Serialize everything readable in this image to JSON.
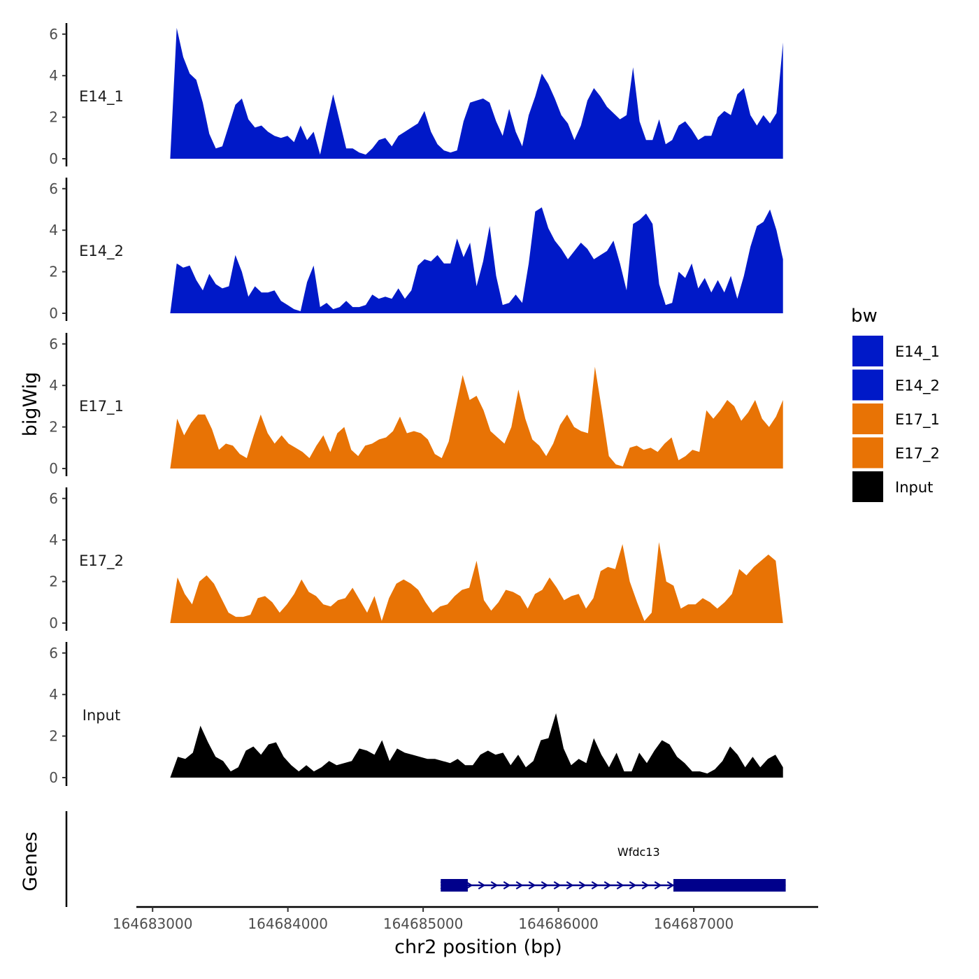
{
  "chart_data": {
    "type": "area",
    "ylabel": "bigWig",
    "xlabel": "chr2 position (bp)",
    "xlim": [
      164682880,
      164687920
    ],
    "data_x_range": [
      164683130,
      164687660
    ],
    "ylim": [
      0,
      6.5
    ],
    "y_ticks": [
      0,
      2,
      4,
      6
    ],
    "x_ticks": [
      164683000,
      164684000,
      164685000,
      164686000,
      164687000
    ],
    "x_tick_labels": [
      "164683000",
      "164684000",
      "164685000",
      "164686000",
      "164687000"
    ],
    "tracks": [
      {
        "name": "E14_1",
        "color": "#0019c8",
        "values": [
          0.0,
          6.3,
          4.9,
          4.1,
          3.8,
          2.7,
          1.2,
          0.5,
          0.6,
          1.6,
          2.6,
          2.9,
          1.9,
          1.5,
          1.6,
          1.3,
          1.1,
          1.0,
          1.1,
          0.8,
          1.6,
          0.9,
          1.3,
          0.2,
          1.7,
          3.1,
          1.8,
          0.5,
          0.5,
          0.3,
          0.2,
          0.5,
          0.9,
          1.0,
          0.6,
          1.1,
          1.3,
          1.5,
          1.7,
          2.3,
          1.3,
          0.7,
          0.4,
          0.3,
          0.4,
          1.8,
          2.7,
          2.8,
          2.9,
          2.7,
          1.8,
          1.1,
          2.4,
          1.3,
          0.6,
          2.1,
          3.0,
          4.1,
          3.6,
          2.9,
          2.1,
          1.7,
          0.9,
          1.6,
          2.8,
          3.4,
          3.0,
          2.5,
          2.2,
          1.9,
          2.1,
          4.4,
          1.8,
          0.9,
          0.9,
          1.9,
          0.7,
          0.9,
          1.6,
          1.8,
          1.4,
          0.9,
          1.1,
          1.1,
          2.0,
          2.3,
          2.1,
          3.1,
          3.4,
          2.1,
          1.6,
          2.1,
          1.7,
          2.2,
          5.6
        ]
      },
      {
        "name": "E14_2",
        "color": "#0019c8",
        "values": [
          0.0,
          2.4,
          2.2,
          2.3,
          1.6,
          1.1,
          1.9,
          1.4,
          1.2,
          1.3,
          2.8,
          2.0,
          0.8,
          1.3,
          1.0,
          1.0,
          1.1,
          0.6,
          0.4,
          0.2,
          0.1,
          1.5,
          2.3,
          0.3,
          0.5,
          0.2,
          0.3,
          0.6,
          0.3,
          0.3,
          0.4,
          0.9,
          0.7,
          0.8,
          0.7,
          1.2,
          0.7,
          1.1,
          2.3,
          2.6,
          2.5,
          2.8,
          2.4,
          2.4,
          3.6,
          2.7,
          3.4,
          1.3,
          2.5,
          4.2,
          1.8,
          0.4,
          0.5,
          0.9,
          0.5,
          2.4,
          4.9,
          5.1,
          4.1,
          3.5,
          3.1,
          2.6,
          3.0,
          3.4,
          3.1,
          2.6,
          2.8,
          3.0,
          3.5,
          2.4,
          1.1,
          4.3,
          4.5,
          4.8,
          4.3,
          1.4,
          0.4,
          0.5,
          2.0,
          1.7,
          2.4,
          1.2,
          1.7,
          1.0,
          1.6,
          1.0,
          1.8,
          0.7,
          1.8,
          3.2,
          4.2,
          4.4,
          5.0,
          4.0,
          2.6
        ]
      },
      {
        "name": "E17_1",
        "color": "#e87305",
        "values": [
          0.0,
          2.4,
          1.6,
          2.2,
          2.6,
          2.6,
          1.9,
          0.9,
          1.2,
          1.1,
          0.7,
          0.5,
          1.6,
          2.6,
          1.7,
          1.2,
          1.6,
          1.2,
          1.0,
          0.8,
          0.5,
          1.1,
          1.6,
          0.8,
          1.7,
          2.0,
          0.9,
          0.6,
          1.1,
          1.2,
          1.4,
          1.5,
          1.8,
          2.5,
          1.7,
          1.8,
          1.7,
          1.4,
          0.7,
          0.5,
          1.3,
          2.9,
          4.5,
          3.3,
          3.5,
          2.8,
          1.8,
          1.5,
          1.2,
          2.0,
          3.8,
          2.4,
          1.4,
          1.1,
          0.6,
          1.2,
          2.1,
          2.6,
          2.0,
          1.8,
          1.7,
          4.9,
          2.8,
          0.6,
          0.2,
          0.1,
          1.0,
          1.1,
          0.9,
          1.0,
          0.8,
          1.2,
          1.5,
          0.4,
          0.6,
          0.9,
          0.8,
          2.8,
          2.4,
          2.8,
          3.3,
          3.0,
          2.3,
          2.7,
          3.3,
          2.4,
          2.0,
          2.5,
          3.3
        ]
      },
      {
        "name": "E17_2",
        "color": "#e87305",
        "values": [
          0.0,
          2.2,
          1.4,
          0.9,
          2.0,
          2.3,
          1.9,
          1.2,
          0.5,
          0.3,
          0.3,
          0.4,
          1.2,
          1.3,
          1.0,
          0.5,
          0.9,
          1.4,
          2.1,
          1.5,
          1.3,
          0.9,
          0.8,
          1.1,
          1.2,
          1.7,
          1.1,
          0.5,
          1.3,
          0.1,
          1.2,
          1.9,
          2.1,
          1.9,
          1.6,
          1.0,
          0.5,
          0.8,
          0.9,
          1.3,
          1.6,
          1.7,
          3.0,
          1.1,
          0.6,
          1.0,
          1.6,
          1.5,
          1.3,
          0.7,
          1.4,
          1.6,
          2.2,
          1.7,
          1.1,
          1.3,
          1.4,
          0.7,
          1.2,
          2.5,
          2.7,
          2.6,
          3.8,
          2.0,
          1.0,
          0.1,
          0.5,
          3.9,
          2.0,
          1.8,
          0.7,
          0.9,
          0.9,
          1.2,
          1.0,
          0.7,
          1.0,
          1.4,
          2.6,
          2.3,
          2.7,
          3.0,
          3.3,
          3.0,
          0.0
        ]
      },
      {
        "name": "Input",
        "color": "#000000",
        "values": [
          0.0,
          1.0,
          0.9,
          1.2,
          2.5,
          1.7,
          1.0,
          0.8,
          0.3,
          0.5,
          1.3,
          1.5,
          1.1,
          1.6,
          1.7,
          1.0,
          0.6,
          0.3,
          0.6,
          0.3,
          0.5,
          0.8,
          0.6,
          0.7,
          0.8,
          1.4,
          1.3,
          1.1,
          1.8,
          0.8,
          1.4,
          1.2,
          1.1,
          1.0,
          0.9,
          0.9,
          0.8,
          0.7,
          0.9,
          0.6,
          0.6,
          1.1,
          1.3,
          1.1,
          1.2,
          0.6,
          1.1,
          0.5,
          0.8,
          1.8,
          1.9,
          3.1,
          1.4,
          0.6,
          0.9,
          0.7,
          1.9,
          1.1,
          0.5,
          1.2,
          0.3,
          0.3,
          1.2,
          0.7,
          1.3,
          1.8,
          1.6,
          1.0,
          0.7,
          0.3,
          0.3,
          0.2,
          0.4,
          0.8,
          1.5,
          1.1,
          0.5,
          1.0,
          0.5,
          0.9,
          1.1,
          0.5
        ]
      }
    ],
    "legend": {
      "title": "bw",
      "position": "right",
      "items": [
        {
          "label": "E14_1",
          "color": "#0019c8"
        },
        {
          "label": "E14_2",
          "color": "#0019c8"
        },
        {
          "label": "E17_1",
          "color": "#e87305"
        },
        {
          "label": "E17_2",
          "color": "#e87305"
        },
        {
          "label": "Input",
          "color": "#000000"
        }
      ]
    },
    "genes_panel": {
      "ylabel": "Genes",
      "gene": {
        "name": "Wfdc13",
        "strand": "+",
        "start": 164685130,
        "end": 164687680,
        "exons": [
          [
            164685130,
            164685330
          ],
          [
            164686850,
            164687680
          ]
        ],
        "color": "#00008b"
      }
    }
  }
}
